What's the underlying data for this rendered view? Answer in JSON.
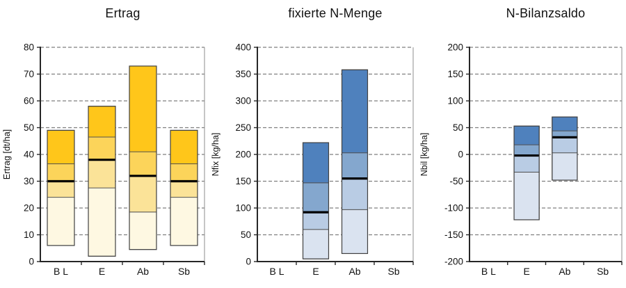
{
  "chart_data": [
    {
      "type": "box",
      "title": "Ertrag",
      "ylabel": "Ertrag [dt/ha]",
      "categories": [
        "B L",
        "E",
        "Ab",
        "Sb"
      ],
      "ymin": 0,
      "ymax": 80,
      "ystep": 10,
      "grid": "dashed-horizontal",
      "legend": "none",
      "values_order": [
        "min",
        "q1",
        "median",
        "q3",
        "max"
      ],
      "series": [
        [
          6,
          24,
          30,
          36.5,
          49
        ],
        [
          2,
          27.5,
          38,
          46.5,
          58
        ],
        [
          4.5,
          18.5,
          32,
          41,
          73
        ],
        [
          6,
          24,
          30,
          36.5,
          49
        ]
      ],
      "palette": [
        "#FEF8E2",
        "#FBE398",
        "#FCD45A",
        "#FFC61A"
      ],
      "median_color": "#000000"
    },
    {
      "type": "box",
      "title": "fixierte N-Menge",
      "ylabel": "Nfix [kg/ha]",
      "categories": [
        "B L",
        "E",
        "Ab",
        "Sb"
      ],
      "ymin": 0,
      "ymax": 400,
      "ystep": 50,
      "grid": "dashed-horizontal",
      "legend": "none",
      "values_order": [
        "min",
        "q1",
        "median",
        "q3",
        "max"
      ],
      "series": [
        null,
        [
          5,
          60,
          92,
          147,
          222
        ],
        [
          15,
          97,
          155,
          203,
          358
        ],
        null
      ],
      "palette": [
        "#DAE3F0",
        "#B9CCE4",
        "#84A7CE",
        "#4F81BD"
      ],
      "median_color": "#000000"
    },
    {
      "type": "box",
      "title": "N-Bilanzsaldo",
      "ylabel": "Nbil [kg/ha]",
      "categories": [
        "B L",
        "E",
        "Ab",
        "Sb"
      ],
      "ymin": -200,
      "ymax": 200,
      "ystep": 50,
      "grid": "dashed-horizontal",
      "legend": "none",
      "values_order": [
        "min",
        "q1",
        "median",
        "q3",
        "max"
      ],
      "series": [
        null,
        [
          -122,
          -33,
          -2,
          18,
          53
        ],
        [
          -48,
          3,
          32,
          44,
          70
        ],
        null
      ],
      "palette": [
        "#DAE3F0",
        "#B9CCE4",
        "#84A7CE",
        "#4F81BD"
      ],
      "median_color": "#000000"
    }
  ]
}
